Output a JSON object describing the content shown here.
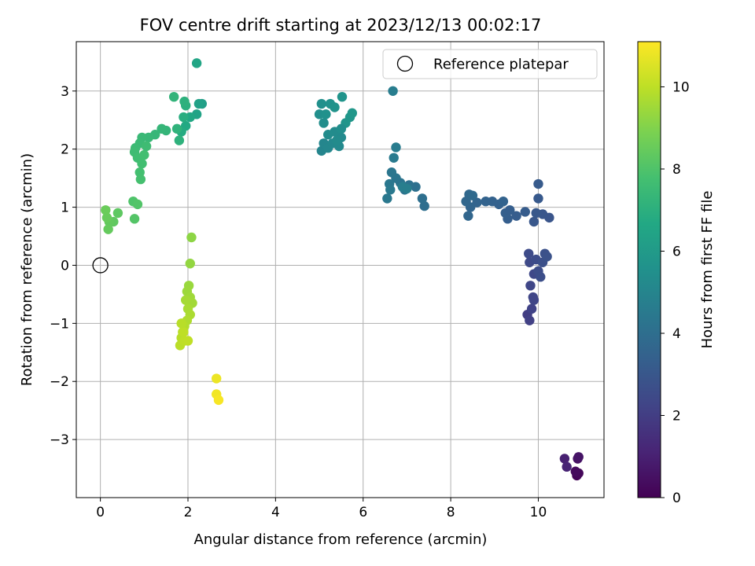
{
  "chart_data": {
    "type": "scatter",
    "title": "FOV centre drift starting at 2023/12/13 00:02:17",
    "xlabel": "Angular distance from reference (arcmin)",
    "ylabel": "Rotation from reference (arcmin)",
    "xlim": [
      -0.55,
      11.5
    ],
    "ylim": [
      -4.0,
      3.85
    ],
    "xticks": [
      0,
      2,
      4,
      6,
      8,
      10
    ],
    "yticks": [
      -3,
      -2,
      -1,
      0,
      1,
      2,
      3
    ],
    "grid": true,
    "legend": {
      "position": "top-right",
      "entries": [
        "Reference platepar"
      ]
    },
    "reference": {
      "x": 0,
      "y": 0
    },
    "colorbar": {
      "label": "Hours from first FF file",
      "colormap": "viridis",
      "range": [
        0,
        11.1
      ],
      "ticks": [
        0,
        2,
        4,
        6,
        8,
        10
      ]
    },
    "points": [
      {
        "x": 10.88,
        "y": -3.62,
        "c": 0.1
      },
      {
        "x": 10.92,
        "y": -3.58,
        "c": 0.2
      },
      {
        "x": 10.85,
        "y": -3.55,
        "c": 0.3
      },
      {
        "x": 10.9,
        "y": -3.33,
        "c": 0.5
      },
      {
        "x": 10.92,
        "y": -3.3,
        "c": 0.6
      },
      {
        "x": 10.6,
        "y": -3.33,
        "c": 1.0
      },
      {
        "x": 10.65,
        "y": -3.47,
        "c": 1.1
      },
      {
        "x": 9.75,
        "y": -0.85,
        "c": 2.0
      },
      {
        "x": 9.8,
        "y": -0.95,
        "c": 2.1
      },
      {
        "x": 9.85,
        "y": -0.75,
        "c": 2.2
      },
      {
        "x": 9.88,
        "y": -0.55,
        "c": 2.3
      },
      {
        "x": 9.82,
        "y": -0.35,
        "c": 2.35
      },
      {
        "x": 9.9,
        "y": -0.15,
        "c": 2.4
      },
      {
        "x": 9.8,
        "y": 0.05,
        "c": 2.45
      },
      {
        "x": 9.78,
        "y": 0.2,
        "c": 2.5
      },
      {
        "x": 9.95,
        "y": 0.1,
        "c": 2.55
      },
      {
        "x": 10.0,
        "y": -0.1,
        "c": 2.6
      },
      {
        "x": 10.05,
        "y": -0.2,
        "c": 2.65
      },
      {
        "x": 10.1,
        "y": 0.05,
        "c": 2.7
      },
      {
        "x": 10.15,
        "y": 0.2,
        "c": 2.75
      },
      {
        "x": 10.2,
        "y": 0.15,
        "c": 2.8
      },
      {
        "x": 9.9,
        "y": -0.6,
        "c": 2.3
      },
      {
        "x": 10.25,
        "y": 0.82,
        "c": 2.9
      },
      {
        "x": 10.1,
        "y": 0.88,
        "c": 2.95
      },
      {
        "x": 9.9,
        "y": 0.75,
        "c": 3.0
      },
      {
        "x": 9.95,
        "y": 0.9,
        "c": 3.05
      },
      {
        "x": 10.0,
        "y": 1.15,
        "c": 3.1
      },
      {
        "x": 10.0,
        "y": 1.4,
        "c": 3.15
      },
      {
        "x": 9.7,
        "y": 0.92,
        "c": 3.2
      },
      {
        "x": 9.5,
        "y": 0.85,
        "c": 3.25
      },
      {
        "x": 9.3,
        "y": 0.8,
        "c": 3.3
      },
      {
        "x": 9.25,
        "y": 0.9,
        "c": 3.35
      },
      {
        "x": 9.1,
        "y": 1.05,
        "c": 3.4
      },
      {
        "x": 8.95,
        "y": 1.1,
        "c": 3.45
      },
      {
        "x": 8.8,
        "y": 1.1,
        "c": 3.5
      },
      {
        "x": 8.6,
        "y": 1.08,
        "c": 3.55
      },
      {
        "x": 8.45,
        "y": 1.0,
        "c": 3.6
      },
      {
        "x": 8.4,
        "y": 0.85,
        "c": 3.65
      },
      {
        "x": 8.35,
        "y": 1.1,
        "c": 3.7
      },
      {
        "x": 8.42,
        "y": 1.22,
        "c": 3.75
      },
      {
        "x": 8.5,
        "y": 1.2,
        "c": 3.8
      },
      {
        "x": 9.2,
        "y": 1.1,
        "c": 3.5
      },
      {
        "x": 9.35,
        "y": 0.95,
        "c": 3.3
      },
      {
        "x": 7.4,
        "y": 1.02,
        "c": 4.0
      },
      {
        "x": 7.35,
        "y": 1.15,
        "c": 4.05
      },
      {
        "x": 7.2,
        "y": 1.35,
        "c": 4.1
      },
      {
        "x": 7.05,
        "y": 1.38,
        "c": 4.15
      },
      {
        "x": 6.95,
        "y": 1.3,
        "c": 4.2
      },
      {
        "x": 6.85,
        "y": 1.42,
        "c": 4.25
      },
      {
        "x": 6.75,
        "y": 1.5,
        "c": 4.3
      },
      {
        "x": 6.65,
        "y": 1.6,
        "c": 4.35
      },
      {
        "x": 6.6,
        "y": 1.4,
        "c": 4.4
      },
      {
        "x": 6.55,
        "y": 1.15,
        "c": 4.45
      },
      {
        "x": 6.62,
        "y": 1.3,
        "c": 4.5
      },
      {
        "x": 6.7,
        "y": 1.85,
        "c": 4.55
      },
      {
        "x": 6.75,
        "y": 2.03,
        "c": 4.6
      },
      {
        "x": 6.68,
        "y": 3.0,
        "c": 4.65
      },
      {
        "x": 6.9,
        "y": 1.35,
        "c": 4.7
      },
      {
        "x": 7.0,
        "y": 1.32,
        "c": 4.72
      },
      {
        "x": 5.05,
        "y": 1.97,
        "c": 5.0
      },
      {
        "x": 5.1,
        "y": 2.1,
        "c": 5.05
      },
      {
        "x": 5.2,
        "y": 2.02,
        "c": 5.1
      },
      {
        "x": 5.3,
        "y": 2.1,
        "c": 5.15
      },
      {
        "x": 5.45,
        "y": 2.05,
        "c": 5.2
      },
      {
        "x": 5.5,
        "y": 2.2,
        "c": 5.25
      },
      {
        "x": 5.35,
        "y": 2.3,
        "c": 5.3
      },
      {
        "x": 5.2,
        "y": 2.25,
        "c": 5.35
      },
      {
        "x": 5.1,
        "y": 2.45,
        "c": 5.4
      },
      {
        "x": 5.0,
        "y": 2.6,
        "c": 5.45
      },
      {
        "x": 5.05,
        "y": 2.78,
        "c": 5.5
      },
      {
        "x": 5.15,
        "y": 2.6,
        "c": 5.55
      },
      {
        "x": 5.25,
        "y": 2.78,
        "c": 5.6
      },
      {
        "x": 5.35,
        "y": 2.72,
        "c": 5.65
      },
      {
        "x": 5.52,
        "y": 2.9,
        "c": 5.7
      },
      {
        "x": 5.6,
        "y": 2.45,
        "c": 5.75
      },
      {
        "x": 5.7,
        "y": 2.55,
        "c": 5.8
      },
      {
        "x": 5.75,
        "y": 2.62,
        "c": 5.85
      },
      {
        "x": 5.5,
        "y": 2.35,
        "c": 5.4
      },
      {
        "x": 5.4,
        "y": 2.15,
        "c": 5.3
      },
      {
        "x": 2.32,
        "y": 2.78,
        "c": 6.2
      },
      {
        "x": 2.25,
        "y": 2.78,
        "c": 6.3
      },
      {
        "x": 2.2,
        "y": 2.6,
        "c": 6.4
      },
      {
        "x": 2.2,
        "y": 3.48,
        "c": 6.5
      },
      {
        "x": 2.05,
        "y": 2.55,
        "c": 6.6
      },
      {
        "x": 1.95,
        "y": 2.4,
        "c": 6.7
      },
      {
        "x": 1.85,
        "y": 2.3,
        "c": 6.8
      },
      {
        "x": 1.9,
        "y": 2.55,
        "c": 6.9
      },
      {
        "x": 1.95,
        "y": 2.75,
        "c": 7.0
      },
      {
        "x": 1.92,
        "y": 2.82,
        "c": 7.05
      },
      {
        "x": 1.8,
        "y": 2.15,
        "c": 7.1
      },
      {
        "x": 1.75,
        "y": 2.35,
        "c": 7.15
      },
      {
        "x": 1.68,
        "y": 2.9,
        "c": 7.2
      },
      {
        "x": 1.5,
        "y": 2.32,
        "c": 7.25
      },
      {
        "x": 1.4,
        "y": 2.35,
        "c": 7.3
      },
      {
        "x": 1.25,
        "y": 2.25,
        "c": 7.35
      },
      {
        "x": 1.1,
        "y": 2.2,
        "c": 7.4
      },
      {
        "x": 0.95,
        "y": 2.2,
        "c": 7.45
      },
      {
        "x": 0.9,
        "y": 2.1,
        "c": 7.5
      },
      {
        "x": 0.8,
        "y": 2.02,
        "c": 7.55
      },
      {
        "x": 0.78,
        "y": 1.95,
        "c": 7.6
      },
      {
        "x": 0.85,
        "y": 1.85,
        "c": 7.65
      },
      {
        "x": 0.95,
        "y": 1.75,
        "c": 7.7
      },
      {
        "x": 0.9,
        "y": 1.6,
        "c": 7.75
      },
      {
        "x": 0.92,
        "y": 1.48,
        "c": 7.8
      },
      {
        "x": 1.0,
        "y": 1.9,
        "c": 7.7
      },
      {
        "x": 1.05,
        "y": 2.05,
        "c": 7.6
      },
      {
        "x": 0.75,
        "y": 1.1,
        "c": 8.0
      },
      {
        "x": 0.85,
        "y": 1.05,
        "c": 8.05
      },
      {
        "x": 0.78,
        "y": 0.8,
        "c": 8.1
      },
      {
        "x": 0.4,
        "y": 0.9,
        "c": 8.3
      },
      {
        "x": 0.3,
        "y": 0.75,
        "c": 8.35
      },
      {
        "x": 0.2,
        "y": 0.75,
        "c": 8.4
      },
      {
        "x": 0.18,
        "y": 0.62,
        "c": 8.45
      },
      {
        "x": 0.15,
        "y": 0.82,
        "c": 8.5
      },
      {
        "x": 0.12,
        "y": 0.95,
        "c": 8.55
      },
      {
        "x": 2.08,
        "y": 0.48,
        "c": 9.2
      },
      {
        "x": 2.05,
        "y": 0.03,
        "c": 9.3
      },
      {
        "x": 2.02,
        "y": -0.35,
        "c": 9.4
      },
      {
        "x": 1.98,
        "y": -0.45,
        "c": 9.45
      },
      {
        "x": 2.05,
        "y": -0.55,
        "c": 9.5
      },
      {
        "x": 2.1,
        "y": -0.65,
        "c": 9.55
      },
      {
        "x": 1.95,
        "y": -0.6,
        "c": 9.6
      },
      {
        "x": 2.0,
        "y": -0.75,
        "c": 9.65
      },
      {
        "x": 2.05,
        "y": -0.85,
        "c": 9.7
      },
      {
        "x": 1.98,
        "y": -0.95,
        "c": 9.75
      },
      {
        "x": 1.92,
        "y": -1.05,
        "c": 9.8
      },
      {
        "x": 1.88,
        "y": -1.15,
        "c": 9.85
      },
      {
        "x": 1.85,
        "y": -1.25,
        "c": 9.9
      },
      {
        "x": 1.82,
        "y": -1.38,
        "c": 9.95
      },
      {
        "x": 1.92,
        "y": -1.3,
        "c": 10.0
      },
      {
        "x": 2.0,
        "y": -1.3,
        "c": 10.05
      },
      {
        "x": 1.9,
        "y": -1.15,
        "c": 10.0
      },
      {
        "x": 1.85,
        "y": -1.0,
        "c": 9.9
      },
      {
        "x": 2.65,
        "y": -1.95,
        "c": 10.8
      },
      {
        "x": 2.65,
        "y": -2.22,
        "c": 10.9
      },
      {
        "x": 2.7,
        "y": -2.32,
        "c": 11.0
      }
    ]
  }
}
